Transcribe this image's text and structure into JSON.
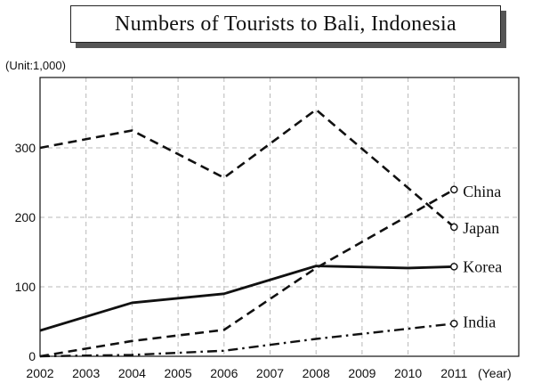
{
  "chart_data": {
    "type": "line",
    "title": "Numbers of Tourists to Bali, Indonesia",
    "unit_label": "(Unit:1,000)",
    "xlabel": "(Year)",
    "x_ticks": [
      "2002",
      "2003",
      "2004",
      "2005",
      "2006",
      "2007",
      "2008",
      "2009",
      "2010",
      "2011"
    ],
    "y_ticks": [
      0,
      100,
      200,
      300
    ],
    "xlim": [
      2002,
      2011
    ],
    "ylim": [
      0,
      375
    ],
    "grid": true,
    "series": [
      {
        "name": "China",
        "style": "dashed",
        "x": [
          2002,
          2004,
          2006,
          2008,
          2011
        ],
        "y": [
          0,
          22,
          38,
          127,
          240
        ]
      },
      {
        "name": "Japan",
        "style": "dashed",
        "x": [
          2002,
          2004,
          2006,
          2008,
          2011
        ],
        "y": [
          300,
          325,
          257,
          355,
          186
        ]
      },
      {
        "name": "Korea",
        "style": "solid",
        "x": [
          2002,
          2004,
          2006,
          2008,
          2010,
          2011
        ],
        "y": [
          37,
          77,
          90,
          130,
          127,
          129
        ]
      },
      {
        "name": "India",
        "style": "dash-dot",
        "x": [
          2002,
          2004,
          2006,
          2008,
          2011
        ],
        "y": [
          0,
          2,
          8,
          25,
          47
        ]
      }
    ],
    "colors": {
      "line": "#111111",
      "grid": "#b8b8b8"
    }
  }
}
